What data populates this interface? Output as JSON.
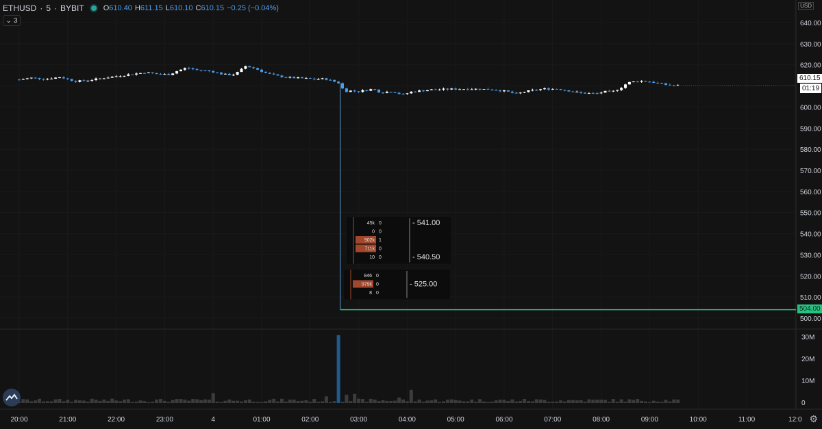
{
  "header": {
    "symbol": "ETHUSD",
    "interval": "5",
    "exchange": "BYBIT",
    "o_label": "O",
    "o_value": "610.40",
    "h_label": "H",
    "h_value": "611.15",
    "l_label": "L",
    "l_value": "610.10",
    "c_label": "C",
    "c_value": "610.15",
    "change": "−0.25 (−0.04%)",
    "indicators_count": "3"
  },
  "axis": {
    "currency": "USD",
    "last_price": "610.15",
    "countdown": "01:19",
    "stop_price": "504.00",
    "volume_ticks": [
      "30M",
      "20M",
      "10M",
      "0"
    ]
  },
  "colors": {
    "background": "#131313",
    "up": "#ffffff",
    "down": "#4b9ded",
    "volume": "#3c3c3c",
    "volume_spike": "#1e5a8a",
    "stop_line": "#26c281",
    "wick_line": "#5b9fd6",
    "orderbook_bar": "#a2472c"
  },
  "orderbook": {
    "upper": {
      "rows": [
        {
          "size": "45k",
          "count": "0",
          "highlight": false
        },
        {
          "size": "0",
          "count": "0",
          "highlight": false
        },
        {
          "size": "902k",
          "count": "1",
          "highlight": true
        },
        {
          "size": "711k",
          "count": "0",
          "highlight": true
        },
        {
          "size": "10",
          "count": "0",
          "highlight": false
        }
      ],
      "prices": [
        "541.00",
        "540.50"
      ]
    },
    "lower": {
      "rows": [
        {
          "size": "846",
          "count": "0",
          "highlight": false
        },
        {
          "size": "979k",
          "count": "0",
          "highlight": true
        },
        {
          "size": "8",
          "count": "0",
          "highlight": false
        }
      ],
      "prices": [
        "525.00"
      ]
    }
  },
  "chart_data": {
    "type": "candlestick",
    "title": "ETHUSD · 5 · BYBIT",
    "x_ticks": [
      "20:00",
      "21:00",
      "22:00",
      "23:00",
      "4",
      "01:00",
      "02:00",
      "03:00",
      "04:00",
      "05:00",
      "06:00",
      "07:00",
      "08:00",
      "09:00",
      "10:00",
      "11:00",
      "12:0"
    ],
    "y_ticks": [
      640,
      630,
      620,
      610,
      600,
      590,
      580,
      570,
      560,
      550,
      540,
      530,
      520,
      510,
      500
    ],
    "ylim": [
      497,
      642
    ],
    "hour_span": 16.95,
    "close_path": [
      {
        "t": 0.0,
        "p": 613.0
      },
      {
        "t": 0.25,
        "p": 613.8
      },
      {
        "t": 0.55,
        "p": 613.3
      },
      {
        "t": 0.85,
        "p": 614.2
      },
      {
        "t": 1.15,
        "p": 612.2
      },
      {
        "t": 1.4,
        "p": 612.6
      },
      {
        "t": 1.7,
        "p": 613.6
      },
      {
        "t": 2.0,
        "p": 614.6
      },
      {
        "t": 2.3,
        "p": 615.5
      },
      {
        "t": 2.6,
        "p": 616.4
      },
      {
        "t": 2.85,
        "p": 615.6
      },
      {
        "t": 3.1,
        "p": 615.4
      },
      {
        "t": 3.25,
        "p": 617.0
      },
      {
        "t": 3.45,
        "p": 618.6
      },
      {
        "t": 3.65,
        "p": 617.6
      },
      {
        "t": 3.95,
        "p": 617.0
      },
      {
        "t": 4.2,
        "p": 615.5
      },
      {
        "t": 4.4,
        "p": 615.2
      },
      {
        "t": 4.55,
        "p": 617.0
      },
      {
        "t": 4.65,
        "p": 619.5
      },
      {
        "t": 4.85,
        "p": 618.4
      },
      {
        "t": 5.1,
        "p": 616.0
      },
      {
        "t": 5.35,
        "p": 614.6
      },
      {
        "t": 5.6,
        "p": 613.9
      },
      {
        "t": 5.85,
        "p": 613.6
      },
      {
        "t": 6.1,
        "p": 613.2
      },
      {
        "t": 6.3,
        "p": 613.4
      },
      {
        "t": 6.45,
        "p": 612.4
      },
      {
        "t": 6.62,
        "p": 611.2
      },
      {
        "t": 6.7,
        "p": 607.0
      },
      {
        "t": 6.78,
        "p": 607.8
      },
      {
        "t": 7.0,
        "p": 607.4
      },
      {
        "t": 7.3,
        "p": 608.6
      },
      {
        "t": 7.45,
        "p": 606.8
      },
      {
        "t": 7.7,
        "p": 607.4
      },
      {
        "t": 7.9,
        "p": 605.8
      },
      {
        "t": 8.1,
        "p": 607.3
      },
      {
        "t": 8.5,
        "p": 608.2
      },
      {
        "t": 8.9,
        "p": 608.5
      },
      {
        "t": 9.3,
        "p": 608.6
      },
      {
        "t": 9.7,
        "p": 608.4
      },
      {
        "t": 10.0,
        "p": 607.6
      },
      {
        "t": 10.25,
        "p": 606.3
      },
      {
        "t": 10.5,
        "p": 607.6
      },
      {
        "t": 10.8,
        "p": 608.6
      },
      {
        "t": 11.1,
        "p": 608.6
      },
      {
        "t": 11.35,
        "p": 607.6
      },
      {
        "t": 11.6,
        "p": 606.6
      },
      {
        "t": 11.9,
        "p": 606.4
      },
      {
        "t": 12.1,
        "p": 607.4
      },
      {
        "t": 12.2,
        "p": 607.0
      },
      {
        "t": 12.4,
        "p": 609.0
      },
      {
        "t": 12.55,
        "p": 611.6
      },
      {
        "t": 12.8,
        "p": 612.4
      },
      {
        "t": 13.0,
        "p": 612.0
      },
      {
        "t": 13.15,
        "p": 611.4
      },
      {
        "t": 13.4,
        "p": 610.3
      },
      {
        "t": 13.6,
        "p": 610.15
      }
    ],
    "wick_low": {
      "t": 6.62,
      "p": 504.0
    },
    "volume_ticks_M": [
      0,
      10,
      20,
      30
    ],
    "volume_spike": {
      "t": 6.62,
      "value_M": 31
    },
    "volume_notable": [
      {
        "t": 4.0,
        "value_M": 4.5
      },
      {
        "t": 6.3,
        "value_M": 3.0
      },
      {
        "t": 6.78,
        "value_M": 3.8
      },
      {
        "t": 6.95,
        "value_M": 4.2
      },
      {
        "t": 7.8,
        "value_M": 2.5
      },
      {
        "t": 8.05,
        "value_M": 6.0
      }
    ]
  }
}
